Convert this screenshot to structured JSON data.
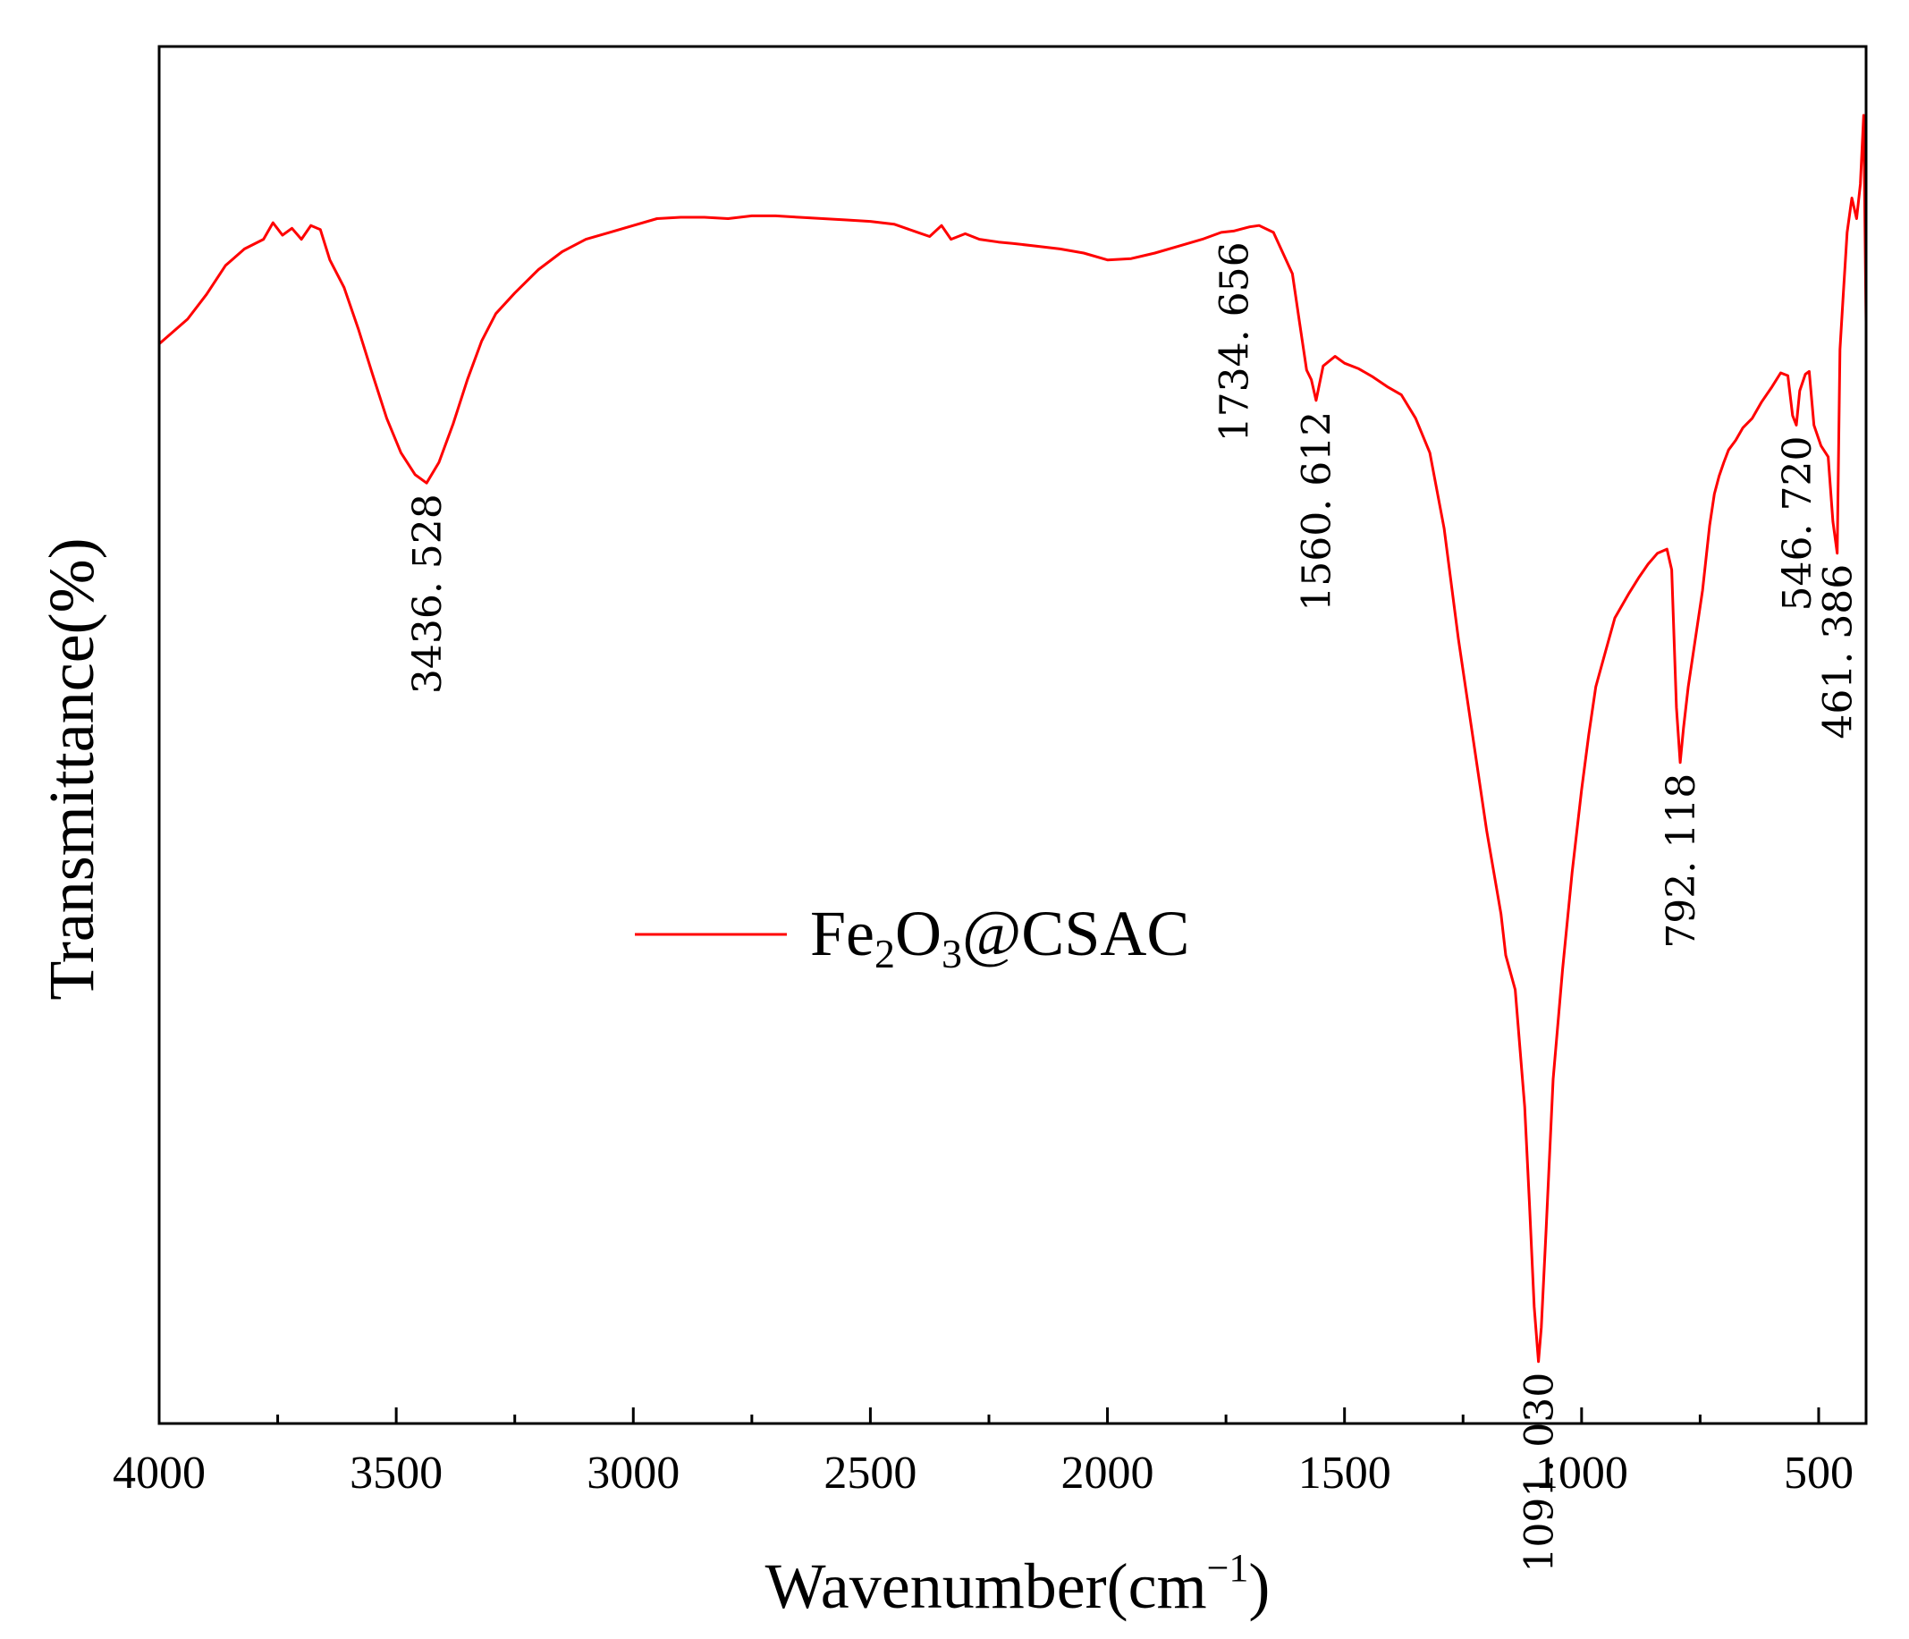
{
  "chart_data": {
    "type": "line",
    "title": "",
    "xlabel": "Wavenumber(cm",
    "xlabel_sup": "−1",
    "xlabel_close": ")",
    "ylabel": "Transmittance(%)",
    "xlim": [
      4000,
      400
    ],
    "ylim": [
      0,
      100
    ],
    "x_reversed": true,
    "x_ticks": [
      4000,
      3500,
      3000,
      2500,
      2000,
      1500,
      1000,
      500
    ],
    "x_tick_labels": [
      "4000",
      "3500",
      "3000",
      "2500",
      "2000",
      "1500",
      "1000",
      "500"
    ],
    "show_y_ticks": false,
    "grid": false,
    "legend": {
      "placement": "center-left",
      "parts": [
        "Fe",
        "2",
        "O",
        "3",
        "@CSAC"
      ]
    },
    "series": [
      {
        "name": "Fe2O3@CSAC",
        "color": "#ff0000",
        "points": [
          [
            4000,
            78.4
          ],
          [
            3940,
            80.2
          ],
          [
            3900,
            82.0
          ],
          [
            3860,
            84.1
          ],
          [
            3820,
            85.3
          ],
          [
            3780,
            86.0
          ],
          [
            3760,
            87.2
          ],
          [
            3740,
            86.3
          ],
          [
            3720,
            86.8
          ],
          [
            3700,
            86.0
          ],
          [
            3680,
            87.0
          ],
          [
            3660,
            86.7
          ],
          [
            3640,
            84.5
          ],
          [
            3610,
            82.5
          ],
          [
            3580,
            79.5
          ],
          [
            3550,
            76.2
          ],
          [
            3520,
            73.0
          ],
          [
            3490,
            70.5
          ],
          [
            3460,
            68.9
          ],
          [
            3436,
            68.3
          ],
          [
            3410,
            69.8
          ],
          [
            3380,
            72.6
          ],
          [
            3350,
            75.8
          ],
          [
            3320,
            78.6
          ],
          [
            3290,
            80.6
          ],
          [
            3250,
            82.1
          ],
          [
            3200,
            83.8
          ],
          [
            3150,
            85.1
          ],
          [
            3100,
            86.0
          ],
          [
            3050,
            86.5
          ],
          [
            3000,
            87.0
          ],
          [
            2950,
            87.5
          ],
          [
            2900,
            87.6
          ],
          [
            2850,
            87.6
          ],
          [
            2800,
            87.5
          ],
          [
            2750,
            87.7
          ],
          [
            2700,
            87.7
          ],
          [
            2650,
            87.6
          ],
          [
            2600,
            87.5
          ],
          [
            2550,
            87.4
          ],
          [
            2500,
            87.3
          ],
          [
            2450,
            87.1
          ],
          [
            2400,
            86.5
          ],
          [
            2375,
            86.2
          ],
          [
            2350,
            87.0
          ],
          [
            2330,
            86.0
          ],
          [
            2300,
            86.4
          ],
          [
            2270,
            86.0
          ],
          [
            2230,
            85.8
          ],
          [
            2200,
            85.7
          ],
          [
            2150,
            85.5
          ],
          [
            2100,
            85.3
          ],
          [
            2050,
            85.0
          ],
          [
            2000,
            84.5
          ],
          [
            1950,
            84.6
          ],
          [
            1900,
            85.0
          ],
          [
            1850,
            85.5
          ],
          [
            1800,
            86.0
          ],
          [
            1760,
            86.5
          ],
          [
            1734,
            86.6
          ],
          [
            1700,
            86.9
          ],
          [
            1680,
            87.0
          ],
          [
            1650,
            86.5
          ],
          [
            1630,
            85.0
          ],
          [
            1610,
            83.5
          ],
          [
            1595,
            80.0
          ],
          [
            1580,
            76.5
          ],
          [
            1570,
            75.8
          ],
          [
            1560,
            74.3
          ],
          [
            1545,
            76.8
          ],
          [
            1520,
            77.5
          ],
          [
            1500,
            77.0
          ],
          [
            1470,
            76.6
          ],
          [
            1440,
            76.0
          ],
          [
            1410,
            75.3
          ],
          [
            1380,
            74.7
          ],
          [
            1350,
            73.0
          ],
          [
            1320,
            70.5
          ],
          [
            1290,
            65.0
          ],
          [
            1260,
            57.0
          ],
          [
            1230,
            50.0
          ],
          [
            1200,
            43.0
          ],
          [
            1170,
            37.0
          ],
          [
            1160,
            34.0
          ],
          [
            1140,
            31.5
          ],
          [
            1120,
            23.0
          ],
          [
            1110,
            16.0
          ],
          [
            1100,
            8.5
          ],
          [
            1091,
            4.5
          ],
          [
            1085,
            7.0
          ],
          [
            1075,
            14.0
          ],
          [
            1060,
            25.0
          ],
          [
            1040,
            33.0
          ],
          [
            1020,
            40.0
          ],
          [
            1000,
            46.0
          ],
          [
            985,
            50.0
          ],
          [
            970,
            53.5
          ],
          [
            950,
            56.0
          ],
          [
            930,
            58.5
          ],
          [
            900,
            60.3
          ],
          [
            880,
            61.4
          ],
          [
            860,
            62.4
          ],
          [
            840,
            63.2
          ],
          [
            820,
            63.5
          ],
          [
            810,
            62.0
          ],
          [
            800,
            52.0
          ],
          [
            792,
            48.0
          ],
          [
            785,
            50.5
          ],
          [
            775,
            53.5
          ],
          [
            760,
            57.0
          ],
          [
            745,
            60.5
          ],
          [
            730,
            65.2
          ],
          [
            720,
            67.5
          ],
          [
            710,
            68.8
          ],
          [
            700,
            69.8
          ],
          [
            690,
            70.7
          ],
          [
            675,
            71.4
          ],
          [
            660,
            72.3
          ],
          [
            640,
            73.0
          ],
          [
            620,
            74.2
          ],
          [
            600,
            75.2
          ],
          [
            580,
            76.3
          ],
          [
            565,
            76.1
          ],
          [
            555,
            73.2
          ],
          [
            547,
            72.5
          ],
          [
            540,
            75.0
          ],
          [
            528,
            76.2
          ],
          [
            520,
            76.4
          ],
          [
            510,
            72.5
          ],
          [
            495,
            71.0
          ],
          [
            480,
            70.2
          ],
          [
            470,
            65.5
          ],
          [
            461,
            63.2
          ],
          [
            455,
            78.0
          ],
          [
            448,
            82.0
          ],
          [
            440,
            86.5
          ],
          [
            430,
            89.0
          ],
          [
            420,
            87.5
          ],
          [
            412,
            90.0
          ],
          [
            405,
            95.0
          ],
          [
            400,
            80.0
          ]
        ]
      }
    ],
    "annotations": [
      {
        "x": 3436.528,
        "y": 68.3,
        "label": "3436. 528"
      },
      {
        "x": 1734.656,
        "y": 86.6,
        "label": "1734. 656"
      },
      {
        "x": 1560.612,
        "y": 74.3,
        "label": "1560. 612"
      },
      {
        "x": 1091.03,
        "y": 4.5,
        "label": "1091. 030"
      },
      {
        "x": 792.118,
        "y": 48.0,
        "label": "792. 118"
      },
      {
        "x": 546.72,
        "y": 72.5,
        "label": "546. 720"
      },
      {
        "x": 461.386,
        "y": 63.2,
        "label": "461. 386"
      }
    ]
  }
}
